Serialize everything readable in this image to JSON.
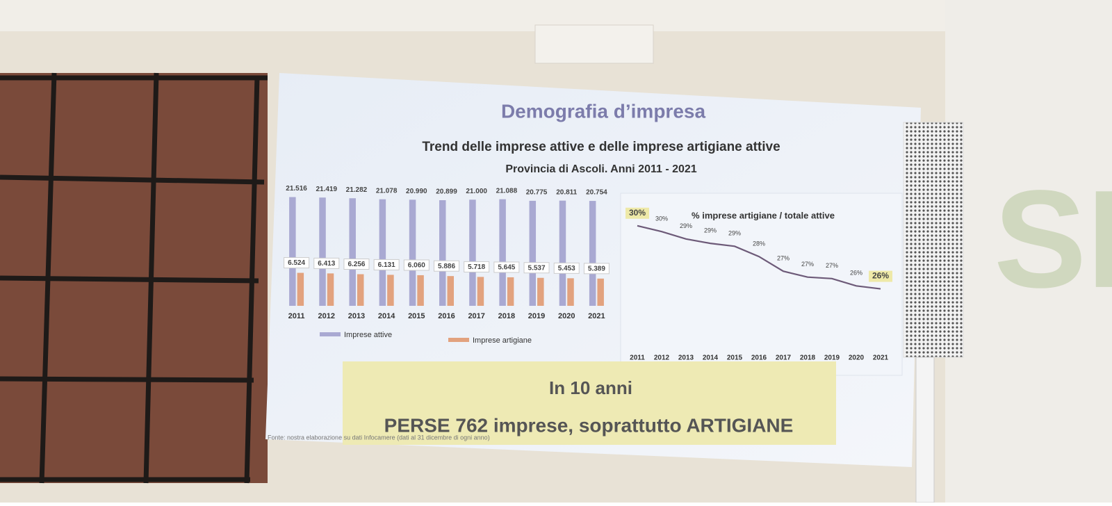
{
  "slide_title": "Demografia d’impresa",
  "chart_data": [
    {
      "type": "bar",
      "title": "Trend delle imprese attive e delle imprese artigiane attive",
      "subtitle": "Provincia di Ascoli. Anni 2011 - 2021",
      "categories": [
        "2011",
        "2012",
        "2013",
        "2014",
        "2015",
        "2016",
        "2017",
        "2018",
        "2019",
        "2020",
        "2021"
      ],
      "series": [
        {
          "name": "Imprese attive",
          "color": "#a9a9d2",
          "values": [
            21516,
            21419,
            21282,
            21078,
            20990,
            20899,
            21000,
            21088,
            20775,
            20811,
            20754
          ],
          "value_labels": [
            "21.516",
            "21.419",
            "21.282",
            "21.078",
            "20.990",
            "20.899",
            "21.000",
            "21.088",
            "20.775",
            "20.811",
            "20.754"
          ]
        },
        {
          "name": "Imprese artigiane",
          "color": "#e2a27e",
          "values": [
            6524,
            6413,
            6256,
            6131,
            6060,
            5886,
            5718,
            5645,
            5537,
            5453,
            5389
          ],
          "value_labels": [
            "6.524",
            "6.413",
            "6.256",
            "6.131",
            "6.060",
            "5.886",
            "5.718",
            "5.645",
            "5.537",
            "5.453",
            "5.389"
          ]
        }
      ],
      "ylim": [
        0,
        22000
      ]
    },
    {
      "type": "line",
      "title": "% imprese artigiane / totale attive",
      "categories": [
        "2011",
        "2012",
        "2013",
        "2014",
        "2015",
        "2016",
        "2017",
        "2018",
        "2019",
        "2020",
        "2021"
      ],
      "values": [
        30.3,
        29.9,
        29.4,
        29.1,
        28.9,
        28.2,
        27.2,
        26.8,
        26.7,
        26.2,
        26.0
      ],
      "value_labels": [
        "30%",
        "30%",
        "29%",
        "29%",
        "29%",
        "28%",
        "27%",
        "27%",
        "27%",
        "26%",
        "26%"
      ],
      "color": "#6d5a78",
      "ylim": [
        22,
        31
      ]
    }
  ],
  "banner": {
    "line1": "In 10 anni",
    "line2": "PERSE  762 imprese, soprattutto ARTIGIANE"
  },
  "source": "Fonte: nostra elaborazione su dati Infocamere (dati al 31 dicembre di ogni anno)",
  "wall_sign": "SPA"
}
